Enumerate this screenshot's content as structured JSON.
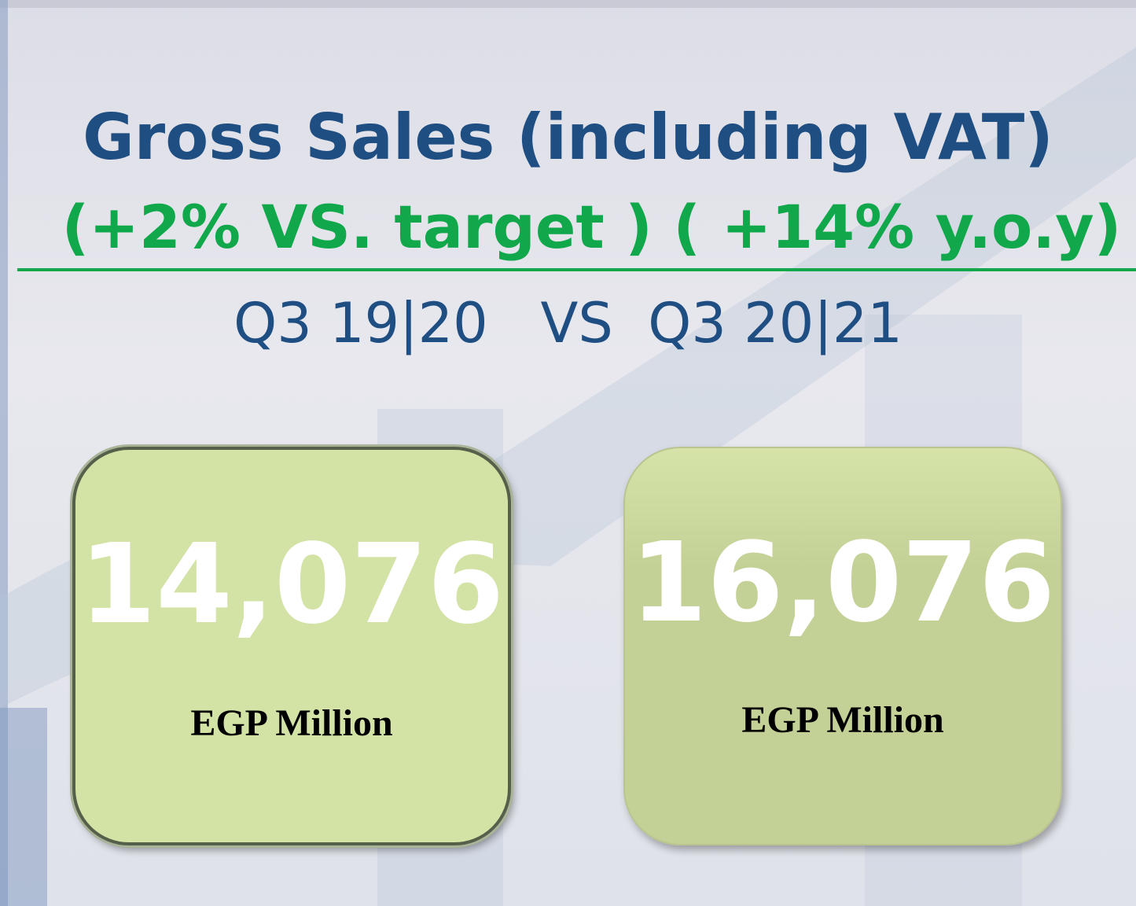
{
  "header": {
    "title": "Gross Sales (including VAT)",
    "subtitle": "(+2% VS. target ) ( +14% y.o.y)",
    "comparison": "Q3 19|20   VS  Q3 20|21"
  },
  "cards": [
    {
      "value": "14,076",
      "unit": "EGP Million"
    },
    {
      "value": "16,076",
      "unit": "EGP Million"
    }
  ]
}
